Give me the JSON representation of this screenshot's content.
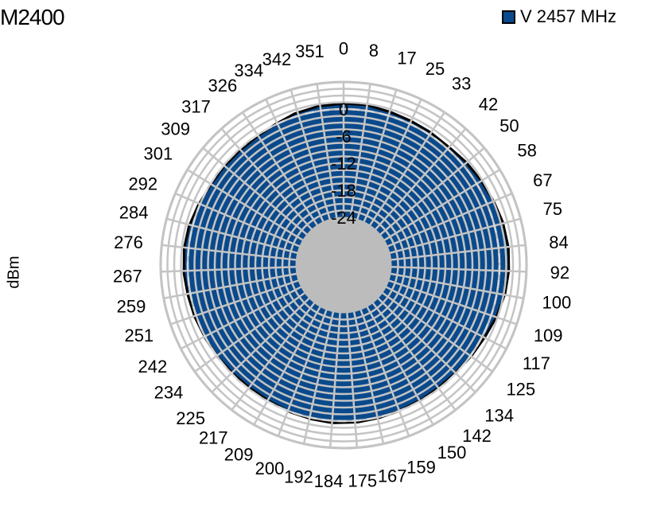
{
  "chart_data": {
    "type": "polar-area",
    "title": "M2400",
    "axis_label": "dBm",
    "legend": [
      {
        "name": "V 2457 MHz",
        "color": "#0a4a8c"
      }
    ],
    "radial_ticks": [
      "0",
      "-6",
      "-12",
      "-18",
      "-24"
    ],
    "radial_tick_values": [
      0,
      -6,
      -12,
      -18,
      -24
    ],
    "radial_range": [
      -24,
      6
    ],
    "angle_labels": [
      "0",
      "8",
      "17",
      "25",
      "33",
      "42",
      "50",
      "58",
      "67",
      "75",
      "84",
      "92",
      "100",
      "109",
      "117",
      "125",
      "134",
      "142",
      "150",
      "159",
      "167",
      "175",
      "184",
      "192",
      "200",
      "209",
      "217",
      "225",
      "234",
      "242",
      "251",
      "259",
      "267",
      "276",
      "284",
      "292",
      "301",
      "309",
      "317",
      "326",
      "334",
      "342",
      "351"
    ],
    "series": [
      {
        "name": "V 2457 MHz",
        "angles": [
          0,
          8,
          17,
          25,
          33,
          42,
          50,
          58,
          67,
          75,
          84,
          92,
          100,
          109,
          117,
          125,
          134,
          142,
          150,
          159,
          167,
          175,
          184,
          192,
          200,
          209,
          217,
          225,
          234,
          242,
          251,
          259,
          267,
          276,
          284,
          292,
          301,
          309,
          317,
          326,
          334,
          342,
          351
        ],
        "values": [
          1.2,
          1.3,
          0.9,
          0.7,
          0.6,
          0.5,
          0.9,
          1.2,
          1.6,
          2.0,
          2.2,
          2.1,
          1.8,
          1.2,
          0.6,
          0.2,
          -0.1,
          -0.2,
          -0.1,
          0.0,
          0.2,
          0.4,
          0.5,
          0.3,
          0.1,
          -0.2,
          -0.3,
          -0.2,
          0.0,
          0.1,
          0.4,
          0.6,
          0.9,
          1.0,
          0.8,
          0.3,
          -0.1,
          -0.2,
          -0.3,
          -0.2,
          0.1,
          0.7,
          1.1
        ]
      }
    ],
    "grid": true
  }
}
